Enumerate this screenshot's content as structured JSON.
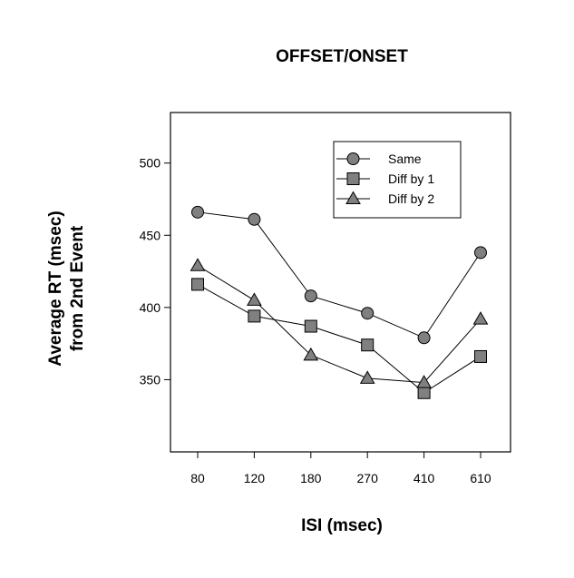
{
  "chart_data": {
    "type": "line",
    "title": "OFFSET/ONSET",
    "xlabel": "ISI (msec)",
    "ylabel_lines": [
      "Average RT (msec)",
      "from 2nd Event"
    ],
    "categories": [
      "80",
      "120",
      "180",
      "270",
      "410",
      "610"
    ],
    "ylim": [
      300,
      535
    ],
    "yticks": [
      350,
      400,
      450,
      500
    ],
    "grid": false,
    "legend_position": "top-right",
    "series": [
      {
        "name": "Same",
        "marker": "circle",
        "values": [
          466,
          461,
          408,
          396,
          379,
          438
        ]
      },
      {
        "name": "Diff by 1",
        "marker": "square",
        "values": [
          416,
          394,
          387,
          374,
          341,
          366
        ]
      },
      {
        "name": "Diff by 2",
        "marker": "triangle",
        "values": [
          429,
          405,
          367,
          351,
          348,
          392
        ]
      }
    ],
    "colors": {
      "marker_fill": "#808080",
      "stroke": "#000000"
    }
  }
}
